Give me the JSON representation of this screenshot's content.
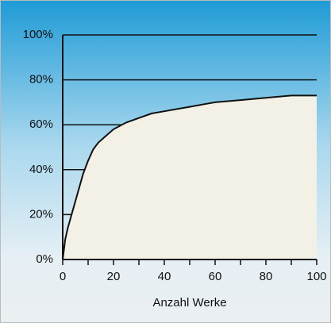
{
  "chart_data": {
    "type": "area",
    "x": [
      0,
      1,
      2,
      4,
      6,
      8,
      10,
      12,
      14,
      17,
      20,
      25,
      30,
      35,
      40,
      45,
      50,
      55,
      60,
      70,
      80,
      90,
      100
    ],
    "values": [
      0,
      9,
      14,
      22,
      30,
      38,
      44,
      49,
      52,
      55,
      58,
      61,
      63,
      65,
      66,
      67,
      68,
      69,
      70,
      71,
      72,
      73,
      73
    ],
    "color": "#f3f0e6",
    "line_color": "#111111",
    "xlim": [
      0,
      100
    ],
    "xticks": [
      0,
      20,
      40,
      60,
      80,
      100
    ],
    "xminorticks": [
      10,
      30,
      50,
      70,
      90
    ],
    "ylim": [
      0,
      100
    ],
    "yticks": [
      {
        "value": 0,
        "label": "0%"
      },
      {
        "value": 20,
        "label": "20%"
      },
      {
        "value": 40,
        "label": "40%"
      },
      {
        "value": 60,
        "label": "60%"
      },
      {
        "value": 80,
        "label": "80%"
      },
      {
        "value": 100,
        "label": "100%"
      }
    ],
    "xlabel": "Anzahl Werke",
    "grid": true
  }
}
